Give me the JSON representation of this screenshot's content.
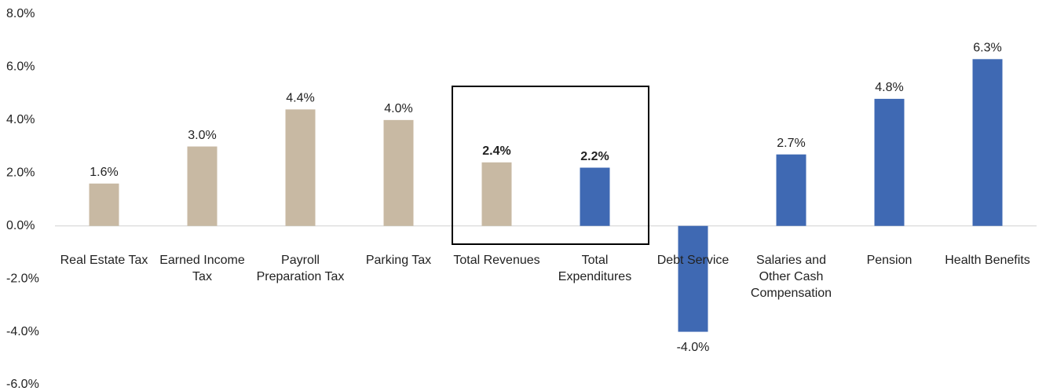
{
  "chart_data": {
    "type": "bar",
    "categories": [
      "Real Estate Tax",
      "Earned Income Tax",
      "Payroll Preparation Tax",
      "Parking Tax",
      "Total Revenues",
      "Total Expenditures",
      "Debt Service",
      "Salaries and Other Cash Compensation",
      "Pension",
      "Health Benefits"
    ],
    "values": [
      1.6,
      3.0,
      4.4,
      4.0,
      2.4,
      2.2,
      -4.0,
      2.7,
      4.8,
      6.3
    ],
    "value_labels": [
      "1.6%",
      "3.0%",
      "4.4%",
      "4.0%",
      "2.4%",
      "2.2%",
      "-4.0%",
      "2.7%",
      "4.8%",
      "6.3%"
    ],
    "colors": [
      "#c8b9a3",
      "#c8b9a3",
      "#c8b9a3",
      "#c8b9a3",
      "#c8b9a3",
      "#3f69b3",
      "#3f69b3",
      "#3f69b3",
      "#3f69b3",
      "#3f69b3"
    ],
    "ylim": [
      -6,
      8
    ],
    "yticks": [
      {
        "value": -6,
        "label": "-6.0%"
      },
      {
        "value": -4,
        "label": "-4.0%"
      },
      {
        "value": -2,
        "label": "-2.0%"
      },
      {
        "value": 0,
        "label": "0.0%"
      },
      {
        "value": 2,
        "label": "2.0%"
      },
      {
        "value": 4,
        "label": "4.0%"
      },
      {
        "value": 6,
        "label": "6.0%"
      },
      {
        "value": 8,
        "label": "8.0%"
      }
    ],
    "grid": false
  }
}
